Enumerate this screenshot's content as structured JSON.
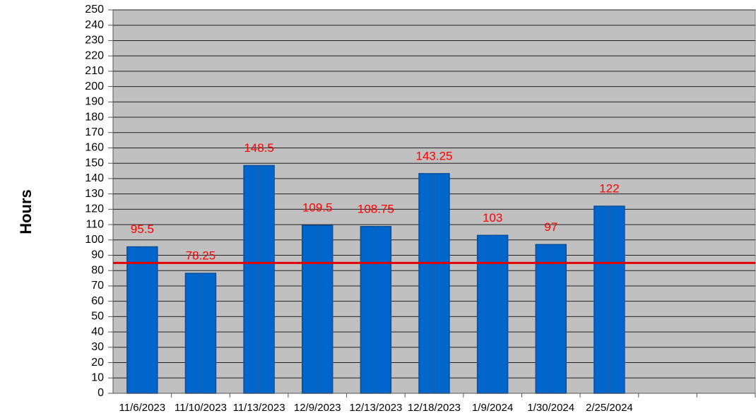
{
  "chart_data": {
    "type": "bar",
    "y_label": "Hours",
    "categories": [
      "11/6/2023",
      "11/10/2023",
      "11/13/2023",
      "12/9/2023",
      "12/13/2023",
      "12/18/2023",
      "1/9/2024",
      "1/30/2024",
      "2/25/2024",
      null,
      null
    ],
    "values": [
      95.5,
      78.25,
      148.5,
      109.5,
      108.75,
      143.25,
      103,
      97,
      122,
      null,
      null
    ],
    "color": "#0066cc",
    "label_color": "#ff0000",
    "reference_line": {
      "value": 85,
      "color": "#e00000"
    },
    "ylim": [
      0,
      250
    ],
    "yticks": [
      0,
      10,
      20,
      30,
      40,
      50,
      60,
      70,
      80,
      90,
      100,
      110,
      120,
      130,
      140,
      150,
      160,
      170,
      180,
      190,
      200,
      210,
      220,
      230,
      240,
      250
    ],
    "grid": true
  }
}
